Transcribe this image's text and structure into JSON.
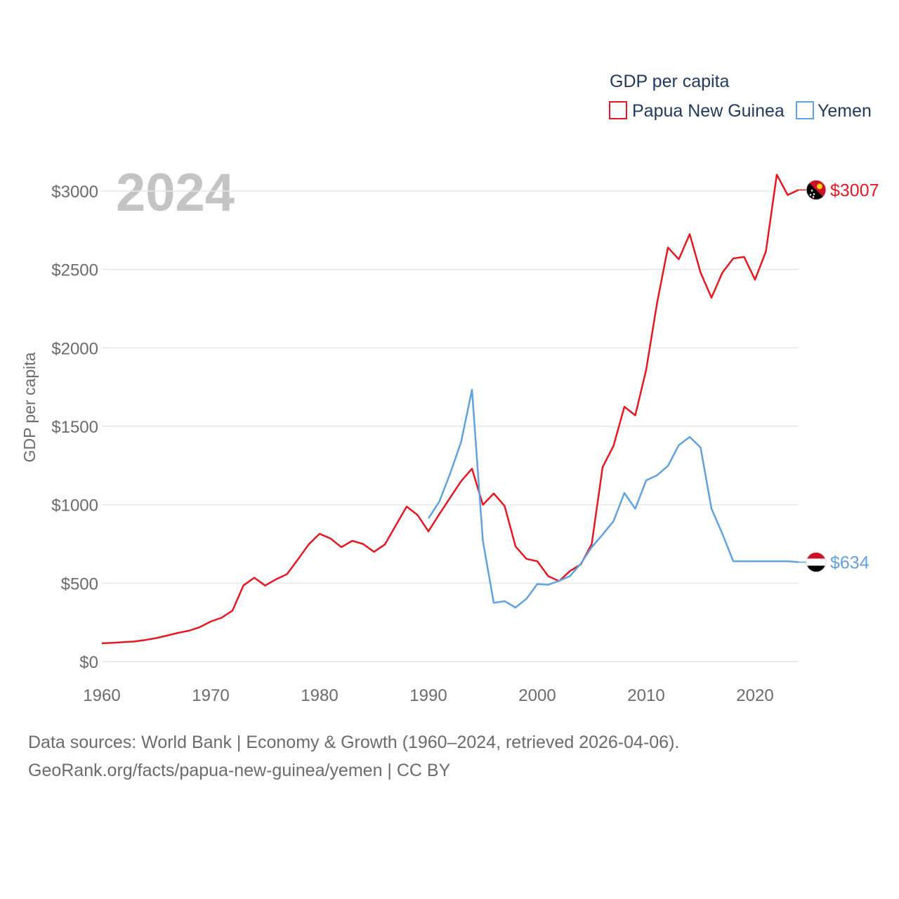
{
  "chart_data": {
    "type": "line",
    "year_label": "2024",
    "legend": {
      "title": "GDP per capita",
      "entries": [
        {
          "name": "Papua New Guinea",
          "color": "#e8171f"
        },
        {
          "name": "Yemen",
          "color": "#5fa2e0"
        }
      ]
    },
    "ylabel": "GDP per capita",
    "ylim": [
      0,
      3100
    ],
    "xlim": [
      1960,
      2024
    ],
    "y_ticks": [
      {
        "value": 0,
        "label": "$0"
      },
      {
        "value": 500,
        "label": "$500"
      },
      {
        "value": 1000,
        "label": "$1000"
      },
      {
        "value": 1500,
        "label": "$1500"
      },
      {
        "value": 2000,
        "label": "$2000"
      },
      {
        "value": 2500,
        "label": "$2500"
      },
      {
        "value": 3000,
        "label": "$3000"
      }
    ],
    "x_ticks": [
      {
        "value": 1960,
        "label": "1960"
      },
      {
        "value": 1970,
        "label": "1970"
      },
      {
        "value": 1980,
        "label": "1980"
      },
      {
        "value": 1990,
        "label": "1990"
      },
      {
        "value": 2000,
        "label": "2000"
      },
      {
        "value": 2010,
        "label": "2010"
      },
      {
        "value": 2020,
        "label": "2020"
      }
    ],
    "series": [
      {
        "name": "Papua New Guinea",
        "color": "#e8171f",
        "flag": "png-flag-icon",
        "end_label": "$3007",
        "end_value": 3007,
        "x": [
          1960,
          1961,
          1962,
          1963,
          1964,
          1965,
          1966,
          1967,
          1968,
          1969,
          1970,
          1971,
          1972,
          1973,
          1974,
          1975,
          1976,
          1977,
          1978,
          1979,
          1980,
          1981,
          1982,
          1983,
          1984,
          1985,
          1986,
          1987,
          1988,
          1989,
          1990,
          1991,
          1992,
          1993,
          1994,
          1995,
          1996,
          1997,
          1998,
          1999,
          2000,
          2001,
          2002,
          2003,
          2004,
          2005,
          2006,
          2007,
          2008,
          2009,
          2010,
          2011,
          2012,
          2013,
          2014,
          2015,
          2016,
          2017,
          2018,
          2019,
          2020,
          2021,
          2022,
          2023,
          2024
        ],
        "values": [
          117,
          120,
          124,
          128,
          138,
          150,
          166,
          183,
          197,
          220,
          255,
          280,
          325,
          485,
          535,
          485,
          525,
          557,
          650,
          747,
          815,
          785,
          730,
          770,
          750,
          700,
          747,
          868,
          988,
          935,
          830,
          940,
          1045,
          1150,
          1230,
          1000,
          1072,
          992,
          735,
          655,
          640,
          545,
          513,
          577,
          620,
          750,
          1240,
          1375,
          1625,
          1570,
          1860,
          2285,
          2640,
          2565,
          2725,
          2480,
          2320,
          2480,
          2570,
          2580,
          2435,
          2615,
          3105,
          2975,
          3007
        ]
      },
      {
        "name": "Yemen",
        "color": "#5fa2e0",
        "flag": "yemen-flag-icon",
        "end_label": "$634",
        "end_value": 634,
        "x": [
          1990,
          1991,
          1992,
          1993,
          1994,
          1995,
          1996,
          1997,
          1998,
          1999,
          2000,
          2001,
          2002,
          2003,
          2004,
          2005,
          2006,
          2007,
          2008,
          2009,
          2010,
          2011,
          2012,
          2013,
          2014,
          2015,
          2016,
          2017,
          2018,
          2019,
          2020,
          2021,
          2022,
          2023,
          2024
        ],
        "values": [
          913,
          1020,
          1200,
          1400,
          1733,
          770,
          375,
          385,
          345,
          400,
          495,
          490,
          515,
          545,
          625,
          730,
          810,
          895,
          1075,
          975,
          1155,
          1188,
          1248,
          1380,
          1432,
          1365,
          975,
          815,
          640,
          640,
          640,
          640,
          640,
          640,
          634
        ]
      }
    ]
  },
  "footer": {
    "line1": "Data sources: World Bank | Economy & Growth (1960–2024, retrieved 2026-04-06).",
    "line2": "GeoRank.org/facts/papua-new-guinea/yemen | CC BY"
  }
}
